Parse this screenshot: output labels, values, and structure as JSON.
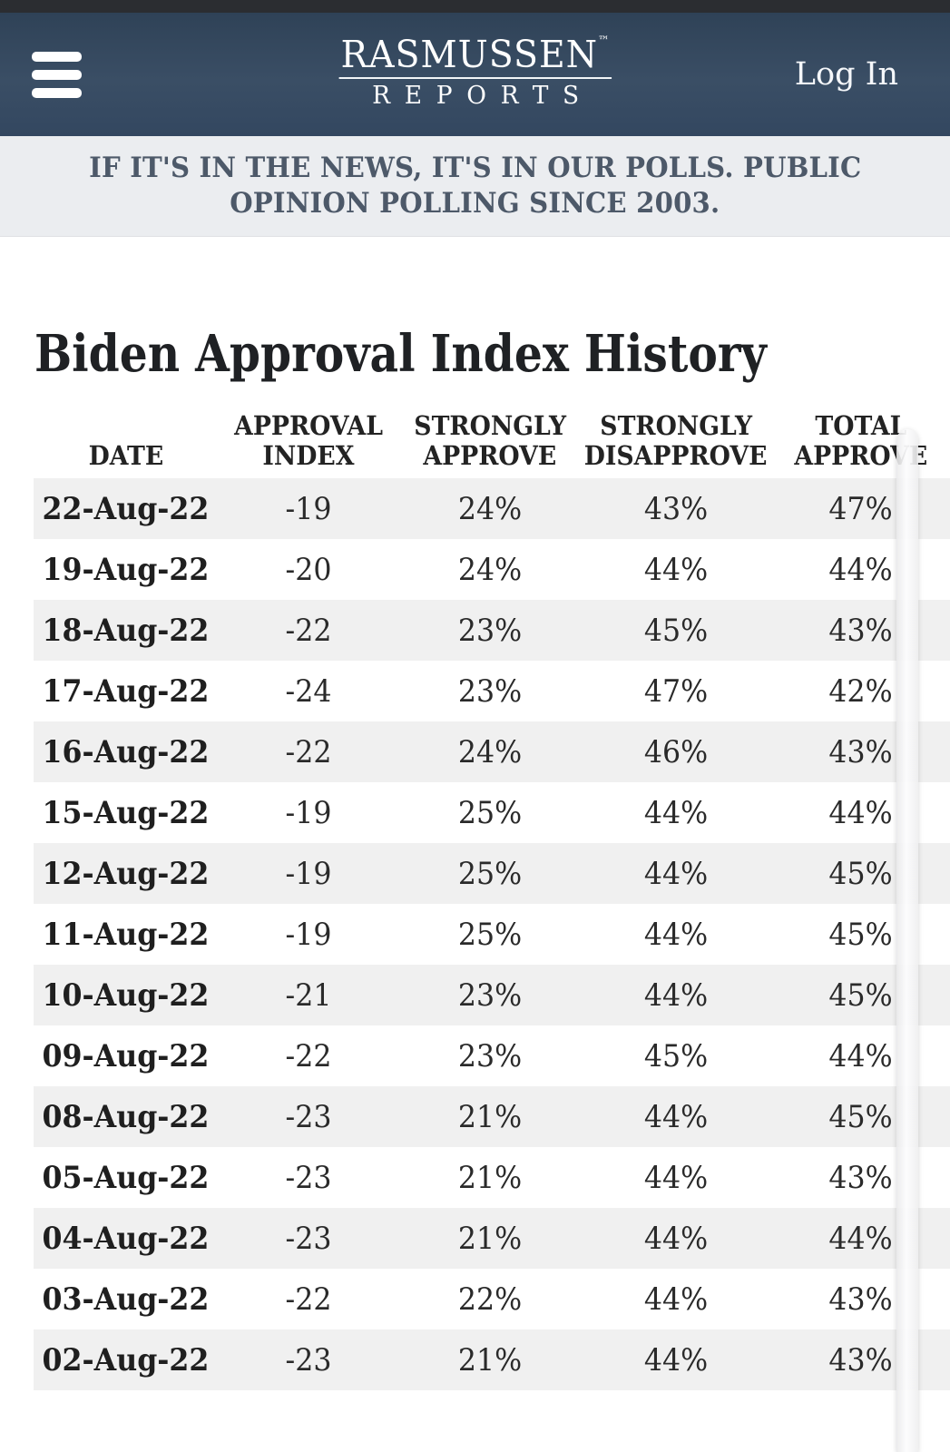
{
  "header": {
    "logo": {
      "line1": "RASMUSSEN",
      "tm": "™",
      "line2": "REPORTS"
    },
    "login_label": "Log In",
    "colors": {
      "appbar": "#35495e",
      "status_strip": "#2b2d31",
      "text": "#ffffff"
    }
  },
  "banner": {
    "lines": [
      "IF IT'S IN THE NEWS, IT'S IN OUR POLLS. PUBLIC",
      "OPINION POLLING SINCE 2003."
    ],
    "background": "#ebedf0",
    "text_color": "#4d5969"
  },
  "page": {
    "title": "Biden Approval Index History"
  },
  "table": {
    "columns": [
      {
        "id": "date",
        "lines": [
          "DATE"
        ]
      },
      {
        "id": "approval_index",
        "lines": [
          "APPROVAL",
          "INDEX"
        ]
      },
      {
        "id": "strongly_approve",
        "lines": [
          "STRONGLY",
          "APPROVE"
        ]
      },
      {
        "id": "strongly_disapprove",
        "lines": [
          "STRONGLY",
          "DISAPPROVE"
        ]
      },
      {
        "id": "total_approve",
        "lines": [
          "TOTAL",
          "APPROVE"
        ]
      }
    ],
    "stripe_color": "#f0f0f0",
    "rows": [
      {
        "date": "22-Aug-22",
        "approval_index": "-19",
        "strongly_approve": "24%",
        "strongly_disapprove": "43%",
        "total_approve": "47%"
      },
      {
        "date": "19-Aug-22",
        "approval_index": "-20",
        "strongly_approve": "24%",
        "strongly_disapprove": "44%",
        "total_approve": "44%"
      },
      {
        "date": "18-Aug-22",
        "approval_index": "-22",
        "strongly_approve": "23%",
        "strongly_disapprove": "45%",
        "total_approve": "43%"
      },
      {
        "date": "17-Aug-22",
        "approval_index": "-24",
        "strongly_approve": "23%",
        "strongly_disapprove": "47%",
        "total_approve": "42%"
      },
      {
        "date": "16-Aug-22",
        "approval_index": "-22",
        "strongly_approve": "24%",
        "strongly_disapprove": "46%",
        "total_approve": "43%"
      },
      {
        "date": "15-Aug-22",
        "approval_index": "-19",
        "strongly_approve": "25%",
        "strongly_disapprove": "44%",
        "total_approve": "44%"
      },
      {
        "date": "12-Aug-22",
        "approval_index": "-19",
        "strongly_approve": "25%",
        "strongly_disapprove": "44%",
        "total_approve": "45%"
      },
      {
        "date": "11-Aug-22",
        "approval_index": "-19",
        "strongly_approve": "25%",
        "strongly_disapprove": "44%",
        "total_approve": "45%"
      },
      {
        "date": "10-Aug-22",
        "approval_index": "-21",
        "strongly_approve": "23%",
        "strongly_disapprove": "44%",
        "total_approve": "45%"
      },
      {
        "date": "09-Aug-22",
        "approval_index": "-22",
        "strongly_approve": "23%",
        "strongly_disapprove": "45%",
        "total_approve": "44%"
      },
      {
        "date": "08-Aug-22",
        "approval_index": "-23",
        "strongly_approve": "21%",
        "strongly_disapprove": "44%",
        "total_approve": "45%"
      },
      {
        "date": "05-Aug-22",
        "approval_index": "-23",
        "strongly_approve": "21%",
        "strongly_disapprove": "44%",
        "total_approve": "43%"
      },
      {
        "date": "04-Aug-22",
        "approval_index": "-23",
        "strongly_approve": "21%",
        "strongly_disapprove": "44%",
        "total_approve": "44%"
      },
      {
        "date": "03-Aug-22",
        "approval_index": "-22",
        "strongly_approve": "22%",
        "strongly_disapprove": "44%",
        "total_approve": "43%"
      },
      {
        "date": "02-Aug-22",
        "approval_index": "-23",
        "strongly_approve": "21%",
        "strongly_disapprove": "44%",
        "total_approve": "43%"
      }
    ]
  }
}
